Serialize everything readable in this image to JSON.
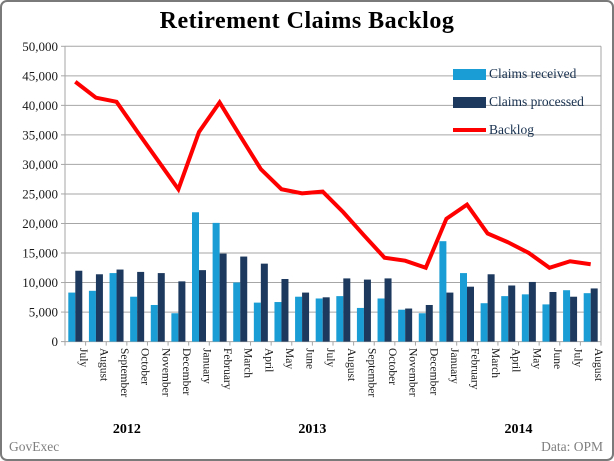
{
  "title": "Retirement Claims Backlog",
  "footer": {
    "left": "GovExec",
    "right": "Data: OPM"
  },
  "colors": {
    "grid": "#A6A6A6",
    "axis_text": "#1a1a1a",
    "year_text": "#000000",
    "footer_text": "#7f7f7f",
    "received": "#1A9DD4",
    "processed": "#1D3A5E",
    "backlog": "#FE0000"
  },
  "chart_data": {
    "type": "bar+line combo",
    "title": "Retirement Claims Backlog",
    "xlabel": "",
    "ylabel": "",
    "ylim": [
      0,
      50000
    ],
    "ytick_interval": 5000,
    "grid": true,
    "legend_position": "top-right inside plot",
    "categories": [
      "July",
      "August",
      "September",
      "October",
      "November",
      "December",
      "January",
      "February",
      "March",
      "April",
      "May",
      "June",
      "July",
      "August",
      "September",
      "October",
      "November",
      "December",
      "January",
      "February",
      "March",
      "April",
      "May",
      "June",
      "July",
      "August"
    ],
    "year_groups": [
      {
        "label": "2012",
        "start": 0,
        "count": 6
      },
      {
        "label": "2013",
        "start": 6,
        "count": 12
      },
      {
        "label": "2014",
        "start": 18,
        "count": 8
      }
    ],
    "series": [
      {
        "name": "Claims received",
        "type": "bar",
        "color": "#1A9DD4",
        "values": [
          8300,
          8600,
          11600,
          7600,
          6200,
          4800,
          21900,
          20100,
          10000,
          6600,
          6700,
          7600,
          7300,
          7700,
          5700,
          7300,
          5400,
          4800,
          17000,
          11600,
          6500,
          7700,
          8000,
          6300,
          8700,
          8200
        ]
      },
      {
        "name": "Claims processed",
        "type": "bar",
        "color": "#1D3A5E",
        "values": [
          12000,
          11400,
          12200,
          11800,
          11600,
          10200,
          12100,
          14900,
          14400,
          13200,
          10600,
          8300,
          7500,
          10700,
          10500,
          10700,
          5600,
          6200,
          8300,
          9300,
          11400,
          9500,
          10100,
          8400,
          7600,
          9000
        ]
      },
      {
        "name": "Backlog",
        "type": "line",
        "color": "#FE0000",
        "values": [
          44000,
          41300,
          40600,
          35600,
          30700,
          25800,
          35500,
          40500,
          34800,
          29200,
          25800,
          25100,
          25400,
          21900,
          18000,
          14200,
          13700,
          12500,
          20800,
          23200,
          18300,
          16800,
          15000,
          12500,
          13600,
          13100
        ]
      }
    ]
  }
}
